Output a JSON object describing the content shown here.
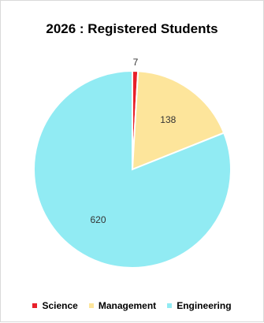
{
  "chart_data": {
    "type": "pie",
    "title": "2026 : Registered Students",
    "categories": [
      "Science",
      "Management",
      "Engineering"
    ],
    "values": [
      7,
      138,
      620
    ],
    "colors": [
      "#e8202a",
      "#fde59b",
      "#91ebf3"
    ],
    "data_labels": [
      "7",
      "138",
      "620"
    ],
    "legend_position": "bottom"
  }
}
